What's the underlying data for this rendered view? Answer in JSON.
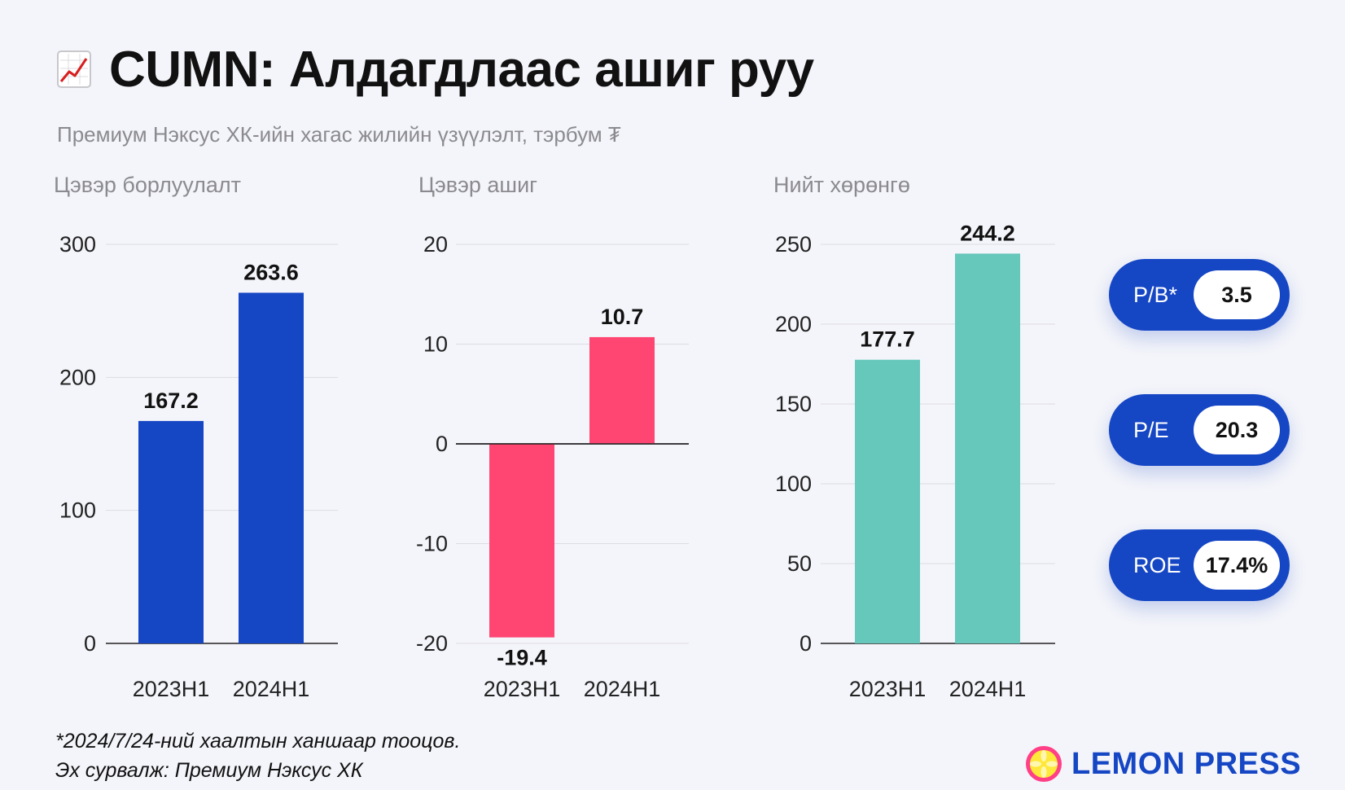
{
  "header": {
    "title": "CUMN: Алдагдлаас ашиг руу",
    "subtitle": "Премиум Нэксус ХК-ийн хагас жилийн үзүүлэлт, тэрбум ₮",
    "title_icon": "chart-increasing-icon"
  },
  "chart_data": [
    {
      "type": "bar",
      "title": "Цэвэр борлуулалт",
      "categories": [
        "2023H1",
        "2024H1"
      ],
      "values": [
        167.2,
        263.6
      ],
      "value_labels": [
        "167.2",
        "263.6"
      ],
      "ylim": [
        0,
        300
      ],
      "yticks": [
        0,
        100,
        200,
        300
      ],
      "color": "#1546c4",
      "grid": true
    },
    {
      "type": "bar",
      "title": "Цэвэр ашиг",
      "categories": [
        "2023H1",
        "2024H1"
      ],
      "values": [
        -19.4,
        10.7
      ],
      "value_labels": [
        "-19.4",
        "10.7"
      ],
      "ylim": [
        -20,
        20
      ],
      "yticks": [
        -20,
        -10,
        0,
        10,
        20
      ],
      "color": "#ff4673",
      "grid": true
    },
    {
      "type": "bar",
      "title": "Нийт хөрөнгө",
      "categories": [
        "2023H1",
        "2024H1"
      ],
      "values": [
        177.7,
        244.2
      ],
      "value_labels": [
        "177.7",
        "244.2"
      ],
      "ylim": [
        0,
        250
      ],
      "yticks": [
        0,
        50,
        100,
        150,
        200,
        250
      ],
      "color": "#66c7bb",
      "grid": true
    }
  ],
  "metrics": [
    {
      "label": "P/B*",
      "value": "3.5"
    },
    {
      "label": "P/E",
      "value": "20.3"
    },
    {
      "label": "ROE",
      "value": "17.4%"
    }
  ],
  "footer": {
    "note": "*2024/7/24-ний хаалтын ханшаар тооцов.",
    "source": "Эх сурвалж: Премиум Нэксус ХК",
    "brand": "LEMON PRESS",
    "brand_icon": "lemon-slice-icon"
  },
  "colors": {
    "blue": "#1546c4",
    "pink": "#ff4673",
    "teal": "#66c7bb",
    "background": "#f4f5fa"
  }
}
